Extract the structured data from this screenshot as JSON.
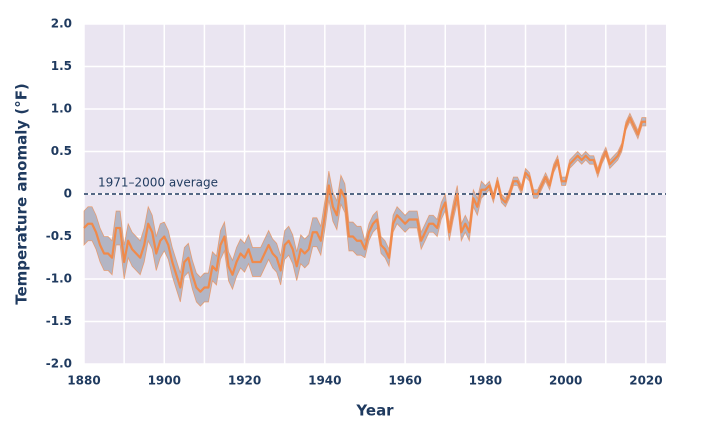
{
  "chart_data": {
    "type": "line",
    "xlabel": "Year",
    "ylabel": "Temperature anomaly (°F)",
    "x": [
      1880,
      1881,
      1882,
      1883,
      1884,
      1885,
      1886,
      1887,
      1888,
      1889,
      1890,
      1891,
      1892,
      1893,
      1894,
      1895,
      1896,
      1897,
      1898,
      1899,
      1900,
      1901,
      1902,
      1903,
      1904,
      1905,
      1906,
      1907,
      1908,
      1909,
      1910,
      1911,
      1912,
      1913,
      1914,
      1915,
      1916,
      1917,
      1918,
      1919,
      1920,
      1921,
      1922,
      1923,
      1924,
      1925,
      1926,
      1927,
      1928,
      1929,
      1930,
      1931,
      1932,
      1933,
      1934,
      1935,
      1936,
      1937,
      1938,
      1939,
      1940,
      1941,
      1942,
      1943,
      1944,
      1945,
      1946,
      1947,
      1948,
      1949,
      1950,
      1951,
      1952,
      1953,
      1954,
      1955,
      1956,
      1957,
      1958,
      1959,
      1960,
      1961,
      1962,
      1963,
      1964,
      1965,
      1966,
      1967,
      1968,
      1969,
      1970,
      1971,
      1972,
      1973,
      1974,
      1975,
      1976,
      1977,
      1978,
      1979,
      1980,
      1981,
      1982,
      1983,
      1984,
      1985,
      1986,
      1987,
      1988,
      1989,
      1990,
      1991,
      1992,
      1993,
      1994,
      1995,
      1996,
      1997,
      1998,
      1999,
      2000,
      2001,
      2002,
      2003,
      2004,
      2005,
      2006,
      2007,
      2008,
      2009,
      2010,
      2011,
      2012,
      2013,
      2014,
      2015,
      2016,
      2017,
      2018,
      2019,
      2020
    ],
    "values": [
      -0.4,
      -0.35,
      -0.35,
      -0.45,
      -0.6,
      -0.7,
      -0.7,
      -0.75,
      -0.4,
      -0.4,
      -0.8,
      -0.55,
      -0.65,
      -0.7,
      -0.75,
      -0.6,
      -0.35,
      -0.45,
      -0.7,
      -0.55,
      -0.5,
      -0.6,
      -0.8,
      -0.95,
      -1.1,
      -0.8,
      -0.75,
      -0.95,
      -1.1,
      -1.15,
      -1.1,
      -1.1,
      -0.85,
      -0.9,
      -0.6,
      -0.5,
      -0.85,
      -0.95,
      -0.8,
      -0.7,
      -0.75,
      -0.65,
      -0.8,
      -0.8,
      -0.8,
      -0.7,
      -0.6,
      -0.7,
      -0.75,
      -0.9,
      -0.6,
      -0.55,
      -0.65,
      -0.85,
      -0.65,
      -0.7,
      -0.65,
      -0.45,
      -0.45,
      -0.55,
      -0.25,
      0.1,
      -0.15,
      -0.25,
      0.05,
      -0.05,
      -0.5,
      -0.5,
      -0.55,
      -0.55,
      -0.65,
      -0.45,
      -0.35,
      -0.3,
      -0.6,
      -0.65,
      -0.75,
      -0.35,
      -0.25,
      -0.3,
      -0.35,
      -0.3,
      -0.3,
      -0.3,
      -0.55,
      -0.45,
      -0.35,
      -0.35,
      -0.4,
      -0.2,
      -0.1,
      -0.45,
      -0.2,
      0,
      -0.45,
      -0.35,
      -0.45,
      -0.05,
      -0.15,
      0.05,
      0.05,
      0.1,
      -0.05,
      0.15,
      -0.05,
      -0.1,
      0,
      0.15,
      0.15,
      0.05,
      0.25,
      0.2,
      0,
      0,
      0.1,
      0.2,
      0.1,
      0.3,
      0.4,
      0.15,
      0.15,
      0.35,
      0.4,
      0.45,
      0.4,
      0.45,
      0.4,
      0.4,
      0.25,
      0.4,
      0.5,
      0.35,
      0.4,
      0.45,
      0.55,
      0.8,
      0.9,
      0.8,
      0.7,
      0.85,
      0.85
    ],
    "uncertainty": [
      0.2,
      0.2,
      0.2,
      0.2,
      0.2,
      0.2,
      0.2,
      0.2,
      0.2,
      0.2,
      0.2,
      0.2,
      0.2,
      0.2,
      0.2,
      0.2,
      0.2,
      0.2,
      0.2,
      0.2,
      0.17,
      0.17,
      0.17,
      0.17,
      0.17,
      0.17,
      0.17,
      0.17,
      0.17,
      0.17,
      0.17,
      0.17,
      0.17,
      0.17,
      0.17,
      0.17,
      0.17,
      0.17,
      0.17,
      0.17,
      0.17,
      0.17,
      0.17,
      0.17,
      0.17,
      0.17,
      0.17,
      0.17,
      0.17,
      0.17,
      0.17,
      0.17,
      0.17,
      0.17,
      0.17,
      0.17,
      0.17,
      0.17,
      0.17,
      0.17,
      0.17,
      0.17,
      0.17,
      0.17,
      0.17,
      0.17,
      0.17,
      0.17,
      0.17,
      0.17,
      0.1,
      0.1,
      0.1,
      0.1,
      0.1,
      0.1,
      0.1,
      0.1,
      0.1,
      0.1,
      0.1,
      0.1,
      0.1,
      0.1,
      0.1,
      0.1,
      0.1,
      0.1,
      0.1,
      0.1,
      0.1,
      0.1,
      0.1,
      0.1,
      0.1,
      0.1,
      0.1,
      0.1,
      0.1,
      0.1,
      0.05,
      0.05,
      0.05,
      0.05,
      0.05,
      0.05,
      0.05,
      0.05,
      0.05,
      0.05,
      0.05,
      0.05,
      0.05,
      0.05,
      0.05,
      0.05,
      0.05,
      0.05,
      0.05,
      0.05,
      0.05,
      0.05,
      0.05,
      0.05,
      0.05,
      0.05,
      0.05,
      0.05,
      0.05,
      0.05,
      0.05,
      0.05,
      0.05,
      0.05,
      0.05,
      0.05,
      0.05,
      0.05,
      0.05,
      0.05,
      0.05
    ],
    "color": "#f08a4b",
    "band_color": "#b3b5c4",
    "xlim": [
      1880,
      2025
    ],
    "xticks": [
      1880,
      1900,
      1920,
      1940,
      1960,
      1980,
      2000,
      2020
    ],
    "xgrid": [
      1880,
      1890,
      1900,
      1910,
      1920,
      1930,
      1940,
      1950,
      1960,
      1970,
      1980,
      1990,
      2000,
      2010,
      2020
    ],
    "ylim": [
      -2,
      2
    ],
    "yticks": [
      {
        "value": -2,
        "label": "-2.0"
      },
      {
        "value": -1.5,
        "label": "-1.5"
      },
      {
        "value": -1,
        "label": "-1.0"
      },
      {
        "value": -0.5,
        "label": "-0.5"
      },
      0,
      {
        "value": 0.5,
        "label": "0.5"
      },
      {
        "value": 1,
        "label": "1.0"
      },
      {
        "value": 1.5,
        "label": "1.5"
      },
      {
        "value": 2,
        "label": "2.0"
      }
    ],
    "grid": true,
    "reference_line": {
      "value": 0,
      "label": "1971–2000 average"
    }
  }
}
